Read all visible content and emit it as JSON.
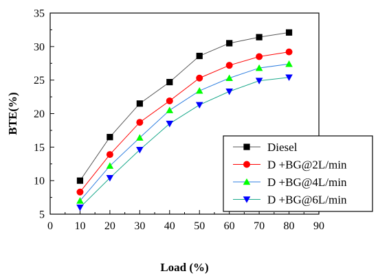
{
  "chart_data": {
    "type": "line",
    "title": "",
    "xlabel": "Load (%)",
    "ylabel": "BTE(%)",
    "xlim": [
      0,
      90
    ],
    "ylim": [
      5,
      35
    ],
    "xticks": [
      0,
      10,
      20,
      30,
      40,
      50,
      60,
      70,
      80,
      90
    ],
    "yticks": [
      5,
      10,
      15,
      20,
      25,
      30,
      35
    ],
    "x": [
      10,
      20,
      30,
      40,
      50,
      60,
      70,
      80
    ],
    "grid": false,
    "legend_position": "bottom-right",
    "series": [
      {
        "name": "Diesel",
        "values": [
          10.0,
          16.5,
          21.5,
          24.7,
          28.6,
          30.5,
          31.4,
          32.1
        ],
        "color": "#000000",
        "line_color": "#555555",
        "marker": "square"
      },
      {
        "name": "D +BG@2L/min",
        "values": [
          8.3,
          13.9,
          18.7,
          21.9,
          25.3,
          27.2,
          28.5,
          29.2
        ],
        "color": "#ff0000",
        "line_color": "#ff0000",
        "marker": "circle"
      },
      {
        "name": "D +BG@4L/min",
        "values": [
          7.0,
          12.2,
          16.4,
          20.5,
          23.4,
          25.3,
          26.8,
          27.4
        ],
        "color": "#00ff00",
        "line_color": "#2f7fe0",
        "marker": "triangle-up"
      },
      {
        "name": "D +BG@6L/min",
        "values": [
          6.0,
          10.4,
          14.6,
          18.5,
          21.3,
          23.3,
          24.9,
          25.4
        ],
        "color": "#0000ff",
        "line_color": "#19a88a",
        "marker": "triangle-down"
      }
    ]
  }
}
